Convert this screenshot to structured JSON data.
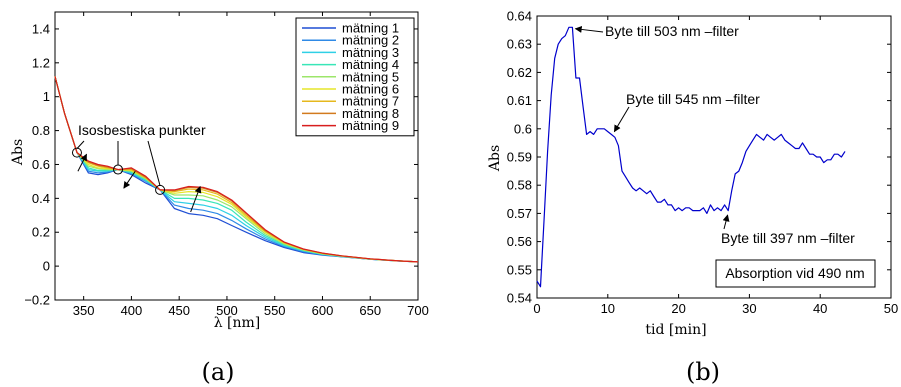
{
  "figure": {
    "panel_a_label": "(a)",
    "panel_b_label": "(b)"
  },
  "chart_data": [
    {
      "type": "line",
      "xlabel": "λ [nm]",
      "ylabel": "Abs",
      "xlim": [
        320,
        700
      ],
      "ylim": [
        -0.2,
        1.5
      ],
      "xticks": [
        350,
        400,
        450,
        500,
        550,
        600,
        650,
        700
      ],
      "yticks": [
        -0.2,
        0,
        0.2,
        0.4,
        0.6,
        0.8,
        1,
        1.2,
        1.4
      ],
      "legend_placement": "top-right",
      "annotations": [
        {
          "text": "Isosbestiska punkter"
        }
      ],
      "isosbestic_points": [
        {
          "x": 343,
          "y": 0.67
        },
        {
          "x": 386,
          "y": 0.57
        },
        {
          "x": 430,
          "y": 0.45
        }
      ],
      "arrows": [
        {
          "from": [
            344,
            0.56
          ],
          "to": [
            353,
            0.66
          ]
        },
        {
          "from": [
            404,
            0.56
          ],
          "to": [
            392,
            0.46
          ]
        },
        {
          "from": [
            462,
            0.32
          ],
          "to": [
            472,
            0.47
          ]
        }
      ],
      "x": [
        320,
        330,
        343,
        355,
        365,
        375,
        386,
        400,
        415,
        430,
        445,
        460,
        475,
        490,
        505,
        520,
        540,
        560,
        580,
        600,
        620,
        650,
        680,
        700
      ],
      "series": [
        {
          "name": "mätning 1",
          "color": "#1f4fd4",
          "values": [
            1.12,
            0.9,
            0.67,
            0.55,
            0.54,
            0.55,
            0.57,
            0.54,
            0.49,
            0.45,
            0.34,
            0.31,
            0.3,
            0.28,
            0.24,
            0.2,
            0.15,
            0.11,
            0.08,
            0.065,
            0.055,
            0.04,
            0.03,
            0.025
          ]
        },
        {
          "name": "mätning 2",
          "color": "#2f8ae6",
          "values": [
            1.12,
            0.9,
            0.67,
            0.56,
            0.55,
            0.555,
            0.57,
            0.545,
            0.5,
            0.45,
            0.36,
            0.34,
            0.33,
            0.31,
            0.27,
            0.22,
            0.16,
            0.115,
            0.085,
            0.067,
            0.056,
            0.04,
            0.03,
            0.025
          ]
        },
        {
          "name": "mätning 3",
          "color": "#2fd0e6",
          "values": [
            1.12,
            0.9,
            0.67,
            0.57,
            0.56,
            0.56,
            0.57,
            0.55,
            0.505,
            0.45,
            0.38,
            0.37,
            0.36,
            0.34,
            0.3,
            0.24,
            0.17,
            0.12,
            0.09,
            0.069,
            0.057,
            0.041,
            0.03,
            0.025
          ]
        },
        {
          "name": "mätning 4",
          "color": "#39e6b8",
          "values": [
            1.12,
            0.9,
            0.67,
            0.58,
            0.565,
            0.565,
            0.57,
            0.555,
            0.51,
            0.45,
            0.4,
            0.4,
            0.39,
            0.37,
            0.33,
            0.26,
            0.18,
            0.125,
            0.092,
            0.071,
            0.058,
            0.041,
            0.031,
            0.025
          ]
        },
        {
          "name": "mätning 5",
          "color": "#9ce66a",
          "values": [
            1.12,
            0.9,
            0.67,
            0.59,
            0.575,
            0.57,
            0.57,
            0.56,
            0.515,
            0.45,
            0.42,
            0.42,
            0.415,
            0.39,
            0.35,
            0.28,
            0.19,
            0.13,
            0.095,
            0.073,
            0.059,
            0.042,
            0.031,
            0.025
          ]
        },
        {
          "name": "mätning 6",
          "color": "#e6e62a",
          "values": [
            1.12,
            0.9,
            0.67,
            0.6,
            0.58,
            0.575,
            0.57,
            0.565,
            0.52,
            0.45,
            0.43,
            0.44,
            0.435,
            0.41,
            0.365,
            0.29,
            0.2,
            0.135,
            0.097,
            0.074,
            0.06,
            0.042,
            0.031,
            0.025
          ]
        },
        {
          "name": "mätning 7",
          "color": "#e6b81e",
          "values": [
            1.12,
            0.9,
            0.67,
            0.61,
            0.59,
            0.58,
            0.57,
            0.57,
            0.52,
            0.45,
            0.44,
            0.455,
            0.45,
            0.425,
            0.375,
            0.3,
            0.205,
            0.138,
            0.099,
            0.075,
            0.06,
            0.042,
            0.031,
            0.025
          ]
        },
        {
          "name": "mätning 8",
          "color": "#d27a1e",
          "values": [
            1.12,
            0.9,
            0.67,
            0.615,
            0.595,
            0.585,
            0.57,
            0.575,
            0.525,
            0.45,
            0.445,
            0.465,
            0.46,
            0.435,
            0.385,
            0.31,
            0.21,
            0.14,
            0.1,
            0.076,
            0.061,
            0.043,
            0.031,
            0.025
          ]
        },
        {
          "name": "mätning 9",
          "color": "#d81e1e",
          "values": [
            1.12,
            0.9,
            0.67,
            0.62,
            0.6,
            0.59,
            0.57,
            0.58,
            0.53,
            0.45,
            0.45,
            0.47,
            0.465,
            0.44,
            0.39,
            0.315,
            0.215,
            0.142,
            0.101,
            0.077,
            0.061,
            0.043,
            0.031,
            0.025
          ]
        }
      ]
    },
    {
      "type": "line",
      "xlabel": "tid [min]",
      "ylabel": "Abs",
      "xlim": [
        0,
        50
      ],
      "ylim": [
        0.54,
        0.64
      ],
      "xticks": [
        0,
        10,
        20,
        30,
        40,
        50
      ],
      "yticks": [
        0.54,
        0.55,
        0.56,
        0.57,
        0.58,
        0.59,
        0.6,
        0.61,
        0.62,
        0.63,
        0.64
      ],
      "legend_placement": "bottom-right",
      "legend_text": "Absorption vid 490 nm",
      "annotations": [
        {
          "text": "Byte till 503 nm –filter",
          "target": [
            5,
            0.6355
          ]
        },
        {
          "text": "Byte till 545 nm –filter",
          "target": [
            10.5,
            0.599
          ]
        },
        {
          "text": "Byte till 397 nm –filter",
          "target": [
            26.5,
            0.5705
          ]
        }
      ],
      "series": [
        {
          "name": "Absorption vid 490 nm",
          "color": "#0000cc",
          "x": [
            0,
            0.5,
            1,
            1.5,
            2,
            2.5,
            3,
            3.5,
            4,
            4.5,
            5,
            5.5,
            6,
            6.5,
            7,
            7.5,
            8,
            8.5,
            9,
            9.5,
            10,
            10.5,
            11,
            11.5,
            12,
            12.5,
            13,
            13.5,
            14,
            14.5,
            15,
            15.5,
            16,
            16.5,
            17,
            17.5,
            18,
            18.5,
            19,
            19.5,
            20,
            20.5,
            21,
            21.5,
            22,
            22.5,
            23,
            23.5,
            24,
            24.5,
            25,
            25.5,
            26,
            26.5,
            27,
            27.5,
            28,
            28.5,
            29,
            29.5,
            30,
            30.5,
            31,
            31.5,
            32,
            32.5,
            33,
            33.5,
            34,
            34.5,
            35,
            35.5,
            36,
            36.5,
            37,
            37.5,
            38,
            38.5,
            39,
            39.5,
            40,
            40.5,
            41,
            41.5,
            42,
            42.5,
            43,
            43.5
          ],
          "values": [
            0.546,
            0.544,
            0.568,
            0.592,
            0.612,
            0.625,
            0.63,
            0.632,
            0.633,
            0.636,
            0.636,
            0.618,
            0.618,
            0.608,
            0.598,
            0.599,
            0.598,
            0.6,
            0.6,
            0.6,
            0.599,
            0.598,
            0.597,
            0.594,
            0.585,
            0.583,
            0.581,
            0.579,
            0.578,
            0.579,
            0.578,
            0.577,
            0.578,
            0.576,
            0.574,
            0.574,
            0.575,
            0.573,
            0.573,
            0.571,
            0.572,
            0.571,
            0.572,
            0.572,
            0.571,
            0.571,
            0.571,
            0.572,
            0.57,
            0.573,
            0.571,
            0.572,
            0.571,
            0.573,
            0.571,
            0.578,
            0.584,
            0.585,
            0.588,
            0.592,
            0.594,
            0.596,
            0.598,
            0.597,
            0.596,
            0.598,
            0.597,
            0.596,
            0.597,
            0.598,
            0.596,
            0.595,
            0.594,
            0.593,
            0.593,
            0.595,
            0.593,
            0.591,
            0.591,
            0.59,
            0.59,
            0.588,
            0.589,
            0.589,
            0.591,
            0.591,
            0.59,
            0.592
          ]
        }
      ]
    }
  ]
}
